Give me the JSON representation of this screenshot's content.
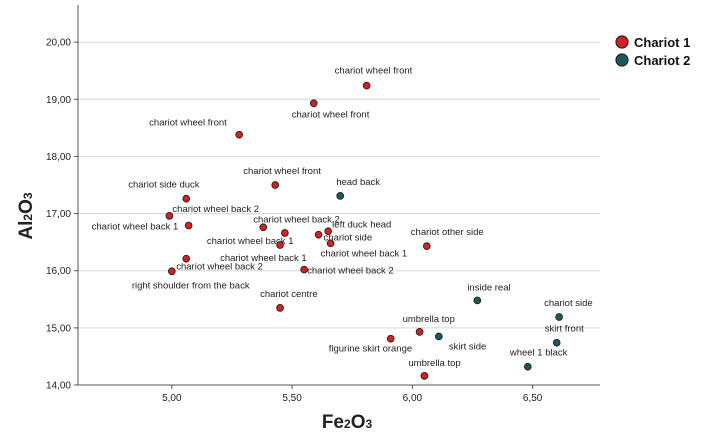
{
  "chart_data": {
    "type": "scatter",
    "title": "",
    "xlabel": "Fe2O3",
    "ylabel": "Al2O3",
    "xlim": [
      4.61,
      6.78
    ],
    "ylim": [
      14.0,
      20.65
    ],
    "xticks": [
      "5,00",
      "5,50",
      "6,00",
      "6,50"
    ],
    "xtick_values": [
      5.0,
      5.5,
      6.0,
      6.5
    ],
    "yticks": [
      "14,00",
      "15,00",
      "16,00",
      "17,00",
      "18,00",
      "19,00",
      "20,00"
    ],
    "ytick_values": [
      14,
      15,
      16,
      17,
      18,
      19,
      20
    ],
    "grid": "horizontal",
    "legend_position": "top-right",
    "series": [
      {
        "name": "Chariot 1",
        "color": "#d42020",
        "points": [
          {
            "x": 5.81,
            "y": 19.24,
            "label": "chariot wheel front"
          },
          {
            "x": 5.59,
            "y": 18.93,
            "label": "chariot wheel front"
          },
          {
            "x": 5.28,
            "y": 18.38,
            "label": "chariot wheel front"
          },
          {
            "x": 5.43,
            "y": 17.5,
            "label": "chariot wheel front"
          },
          {
            "x": 5.06,
            "y": 17.26,
            "label": "chariot side duck"
          },
          {
            "x": 4.99,
            "y": 16.96,
            "label": "chariot wheel back 2"
          },
          {
            "x": 5.07,
            "y": 16.79,
            "label": "chariot wheel back 1"
          },
          {
            "x": 5.38,
            "y": 16.76,
            "label": "chariot wheel back 2"
          },
          {
            "x": 5.65,
            "y": 16.69,
            "label": "left duck head"
          },
          {
            "x": 5.47,
            "y": 16.66,
            "label": "chariot wheel back 1"
          },
          {
            "x": 5.61,
            "y": 16.63,
            "label": "chariot side"
          },
          {
            "x": 5.45,
            "y": 16.45,
            "label": "chariot wheel back 1"
          },
          {
            "x": 5.66,
            "y": 16.48,
            "label": "chariot wheel back 1"
          },
          {
            "x": 6.06,
            "y": 16.43,
            "label": "chariot other side"
          },
          {
            "x": 5.06,
            "y": 16.21,
            "label": "chariot wheel back 2"
          },
          {
            "x": 5.0,
            "y": 15.99,
            "label": "right shoulder from the back"
          },
          {
            "x": 5.55,
            "y": 16.02,
            "label": "chariot wheel back 2"
          },
          {
            "x": 5.45,
            "y": 15.35,
            "label": "chariot centre"
          },
          {
            "x": 6.03,
            "y": 14.93,
            "label": "umbrella top"
          },
          {
            "x": 5.91,
            "y": 14.81,
            "label": "figurine skirt orange"
          },
          {
            "x": 6.05,
            "y": 14.16,
            "label": "umbrella top"
          }
        ]
      },
      {
        "name": "Chariot 2",
        "color": "#1a5a5c",
        "points": [
          {
            "x": 5.7,
            "y": 17.31,
            "label": "head back"
          },
          {
            "x": 6.27,
            "y": 15.48,
            "label": "inside real"
          },
          {
            "x": 6.61,
            "y": 15.19,
            "label": "chariot side"
          },
          {
            "x": 6.11,
            "y": 14.85,
            "label": "skirt side"
          },
          {
            "x": 6.6,
            "y": 14.74,
            "label": "skirt front"
          },
          {
            "x": 6.48,
            "y": 14.32,
            "label": "wheel 1 black"
          }
        ]
      }
    ]
  }
}
